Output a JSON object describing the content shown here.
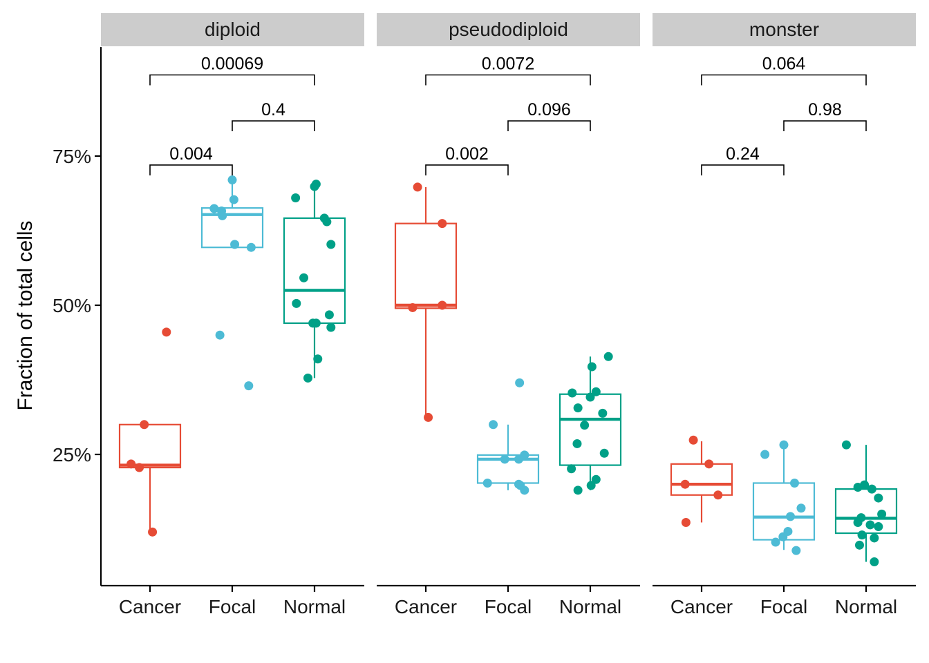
{
  "chart_data": {
    "type": "box",
    "ylabel": "Fraction of total cells",
    "y_ticks": [
      {
        "value": 25,
        "label": "25%"
      },
      {
        "value": 50,
        "label": "50%"
      },
      {
        "value": 75,
        "label": "75%"
      }
    ],
    "ylim": [
      5,
      92
    ],
    "groups": [
      "Cancer",
      "Focal",
      "Normal"
    ],
    "group_colors": {
      "Cancer": "#E64B35",
      "Focal": "#4DBBD5",
      "Normal": "#00A087"
    },
    "legend": "none",
    "grid": false,
    "panels": [
      {
        "name": "diploid",
        "boxes": [
          {
            "group": "Cancer",
            "q1": 22.8,
            "median": 23.2,
            "q3": 30.0,
            "whisker_low": 12.0,
            "whisker_high": 30.0
          },
          {
            "group": "Focal",
            "q1": 59.7,
            "median": 65.2,
            "q3": 66.3,
            "whisker_low": 59.7,
            "whisker_high": 71.0
          },
          {
            "group": "Normal",
            "q1": 47.0,
            "median": 52.5,
            "q3": 64.6,
            "whisker_low": 37.8,
            "whisker_high": 70.5
          }
        ],
        "points": [
          {
            "group": "Cancer",
            "jitter": 0.2,
            "y": 45.5
          },
          {
            "group": "Cancer",
            "jitter": -0.07,
            "y": 30.0
          },
          {
            "group": "Cancer",
            "jitter": -0.23,
            "y": 23.4
          },
          {
            "group": "Cancer",
            "jitter": -0.13,
            "y": 22.8
          },
          {
            "group": "Cancer",
            "jitter": 0.03,
            "y": 12.0
          },
          {
            "group": "Focal",
            "jitter": 0.0,
            "y": 71.0
          },
          {
            "group": "Focal",
            "jitter": 0.02,
            "y": 67.7
          },
          {
            "group": "Focal",
            "jitter": -0.22,
            "y": 66.2
          },
          {
            "group": "Focal",
            "jitter": -0.13,
            "y": 65.8
          },
          {
            "group": "Focal",
            "jitter": -0.12,
            "y": 65.0
          },
          {
            "group": "Focal",
            "jitter": 0.03,
            "y": 60.2
          },
          {
            "group": "Focal",
            "jitter": 0.23,
            "y": 59.7
          },
          {
            "group": "Focal",
            "jitter": -0.15,
            "y": 45.0
          },
          {
            "group": "Focal",
            "jitter": 0.2,
            "y": 36.5
          },
          {
            "group": "Normal",
            "jitter": 0.02,
            "y": 70.3
          },
          {
            "group": "Normal",
            "jitter": 0.0,
            "y": 69.9
          },
          {
            "group": "Normal",
            "jitter": -0.23,
            "y": 68.0
          },
          {
            "group": "Normal",
            "jitter": 0.12,
            "y": 64.6
          },
          {
            "group": "Normal",
            "jitter": 0.15,
            "y": 64.0
          },
          {
            "group": "Normal",
            "jitter": 0.2,
            "y": 60.2
          },
          {
            "group": "Normal",
            "jitter": -0.13,
            "y": 54.6
          },
          {
            "group": "Normal",
            "jitter": -0.22,
            "y": 50.3
          },
          {
            "group": "Normal",
            "jitter": 0.18,
            "y": 48.4
          },
          {
            "group": "Normal",
            "jitter": -0.02,
            "y": 47.0
          },
          {
            "group": "Normal",
            "jitter": 0.02,
            "y": 47.0
          },
          {
            "group": "Normal",
            "jitter": 0.2,
            "y": 46.3
          },
          {
            "group": "Normal",
            "jitter": 0.04,
            "y": 41.0
          },
          {
            "group": "Normal",
            "jitter": -0.08,
            "y": 37.8
          }
        ],
        "comparisons": [
          {
            "from": "Cancer",
            "to": "Normal",
            "label": "0.00069",
            "y": 88.6
          },
          {
            "from": "Focal",
            "to": "Normal",
            "label": "0.4",
            "y": 80.9
          },
          {
            "from": "Cancer",
            "to": "Focal",
            "label": "0.004",
            "y": 73.5
          }
        ]
      },
      {
        "name": "pseudodiploid",
        "boxes": [
          {
            "group": "Cancer",
            "q1": 49.5,
            "median": 50.0,
            "q3": 63.7,
            "whisker_low": 31.2,
            "whisker_high": 69.8
          },
          {
            "group": "Focal",
            "q1": 20.2,
            "median": 24.2,
            "q3": 24.9,
            "whisker_low": 19.0,
            "whisker_high": 30.0
          },
          {
            "group": "Normal",
            "q1": 23.2,
            "median": 30.9,
            "q3": 35.1,
            "whisker_low": 19.0,
            "whisker_high": 41.4
          }
        ],
        "points": [
          {
            "group": "Cancer",
            "jitter": -0.1,
            "y": 69.8
          },
          {
            "group": "Cancer",
            "jitter": 0.2,
            "y": 63.7
          },
          {
            "group": "Cancer",
            "jitter": 0.2,
            "y": 50.0
          },
          {
            "group": "Cancer",
            "jitter": -0.16,
            "y": 49.6
          },
          {
            "group": "Cancer",
            "jitter": 0.03,
            "y": 31.2
          },
          {
            "group": "Focal",
            "jitter": 0.14,
            "y": 37.0
          },
          {
            "group": "Focal",
            "jitter": -0.18,
            "y": 30.0
          },
          {
            "group": "Focal",
            "jitter": 0.2,
            "y": 24.9
          },
          {
            "group": "Focal",
            "jitter": -0.04,
            "y": 24.2
          },
          {
            "group": "Focal",
            "jitter": 0.13,
            "y": 24.2
          },
          {
            "group": "Focal",
            "jitter": -0.25,
            "y": 20.2
          },
          {
            "group": "Focal",
            "jitter": 0.13,
            "y": 20.0
          },
          {
            "group": "Focal",
            "jitter": 0.15,
            "y": 19.8
          },
          {
            "group": "Focal",
            "jitter": 0.2,
            "y": 19.0
          },
          {
            "group": "Normal",
            "jitter": 0.22,
            "y": 41.4
          },
          {
            "group": "Normal",
            "jitter": 0.02,
            "y": 39.7
          },
          {
            "group": "Normal",
            "jitter": 0.07,
            "y": 35.5
          },
          {
            "group": "Normal",
            "jitter": -0.22,
            "y": 35.3
          },
          {
            "group": "Normal",
            "jitter": 0.0,
            "y": 34.6
          },
          {
            "group": "Normal",
            "jitter": -0.15,
            "y": 32.8
          },
          {
            "group": "Normal",
            "jitter": 0.15,
            "y": 31.9
          },
          {
            "group": "Normal",
            "jitter": -0.07,
            "y": 29.9
          },
          {
            "group": "Normal",
            "jitter": -0.16,
            "y": 26.8
          },
          {
            "group": "Normal",
            "jitter": 0.17,
            "y": 25.2
          },
          {
            "group": "Normal",
            "jitter": -0.23,
            "y": 22.6
          },
          {
            "group": "Normal",
            "jitter": 0.07,
            "y": 20.8
          },
          {
            "group": "Normal",
            "jitter": 0.01,
            "y": 19.8
          },
          {
            "group": "Normal",
            "jitter": -0.15,
            "y": 19.0
          }
        ],
        "comparisons": [
          {
            "from": "Cancer",
            "to": "Normal",
            "label": "0.0072",
            "y": 88.6
          },
          {
            "from": "Focal",
            "to": "Normal",
            "label": "0.096",
            "y": 80.9
          },
          {
            "from": "Cancer",
            "to": "Focal",
            "label": "0.002",
            "y": 73.5
          }
        ]
      },
      {
        "name": "monster",
        "boxes": [
          {
            "group": "Cancer",
            "q1": 18.2,
            "median": 20.0,
            "q3": 23.4,
            "whisker_low": 13.6,
            "whisker_high": 27.2
          },
          {
            "group": "Focal",
            "q1": 10.7,
            "median": 14.5,
            "q3": 20.2,
            "whisker_low": 9.0,
            "whisker_high": 26.6
          },
          {
            "group": "Normal",
            "q1": 11.8,
            "median": 14.3,
            "q3": 19.2,
            "whisker_low": 7.0,
            "whisker_high": 26.6
          }
        ],
        "points": [
          {
            "group": "Cancer",
            "jitter": -0.1,
            "y": 27.4
          },
          {
            "group": "Cancer",
            "jitter": 0.09,
            "y": 23.4
          },
          {
            "group": "Cancer",
            "jitter": -0.2,
            "y": 20.0
          },
          {
            "group": "Cancer",
            "jitter": 0.2,
            "y": 18.2
          },
          {
            "group": "Cancer",
            "jitter": -0.19,
            "y": 13.6
          },
          {
            "group": "Focal",
            "jitter": 0.0,
            "y": 26.6
          },
          {
            "group": "Focal",
            "jitter": -0.23,
            "y": 25.0
          },
          {
            "group": "Focal",
            "jitter": 0.13,
            "y": 20.2
          },
          {
            "group": "Focal",
            "jitter": 0.21,
            "y": 16.0
          },
          {
            "group": "Focal",
            "jitter": 0.08,
            "y": 14.6
          },
          {
            "group": "Focal",
            "jitter": 0.05,
            "y": 12.1
          },
          {
            "group": "Focal",
            "jitter": -0.01,
            "y": 11.2
          },
          {
            "group": "Focal",
            "jitter": -0.1,
            "y": 10.3
          },
          {
            "group": "Focal",
            "jitter": 0.15,
            "y": 8.9
          },
          {
            "group": "Normal",
            "jitter": -0.24,
            "y": 26.6
          },
          {
            "group": "Normal",
            "jitter": -0.02,
            "y": 19.9
          },
          {
            "group": "Normal",
            "jitter": -0.1,
            "y": 19.5
          },
          {
            "group": "Normal",
            "jitter": 0.07,
            "y": 19.2
          },
          {
            "group": "Normal",
            "jitter": 0.15,
            "y": 17.7
          },
          {
            "group": "Normal",
            "jitter": 0.19,
            "y": 15.0
          },
          {
            "group": "Normal",
            "jitter": -0.06,
            "y": 14.4
          },
          {
            "group": "Normal",
            "jitter": -0.1,
            "y": 13.6
          },
          {
            "group": "Normal",
            "jitter": 0.05,
            "y": 13.2
          },
          {
            "group": "Normal",
            "jitter": 0.15,
            "y": 12.9
          },
          {
            "group": "Normal",
            "jitter": -0.05,
            "y": 11.5
          },
          {
            "group": "Normal",
            "jitter": 0.1,
            "y": 11.0
          },
          {
            "group": "Normal",
            "jitter": -0.08,
            "y": 9.8
          },
          {
            "group": "Normal",
            "jitter": 0.1,
            "y": 7.0
          }
        ],
        "comparisons": [
          {
            "from": "Cancer",
            "to": "Normal",
            "label": "0.064",
            "y": 88.6
          },
          {
            "from": "Focal",
            "to": "Normal",
            "label": "0.98",
            "y": 80.9
          },
          {
            "from": "Cancer",
            "to": "Focal",
            "label": "0.24",
            "y": 73.5
          }
        ]
      }
    ]
  }
}
